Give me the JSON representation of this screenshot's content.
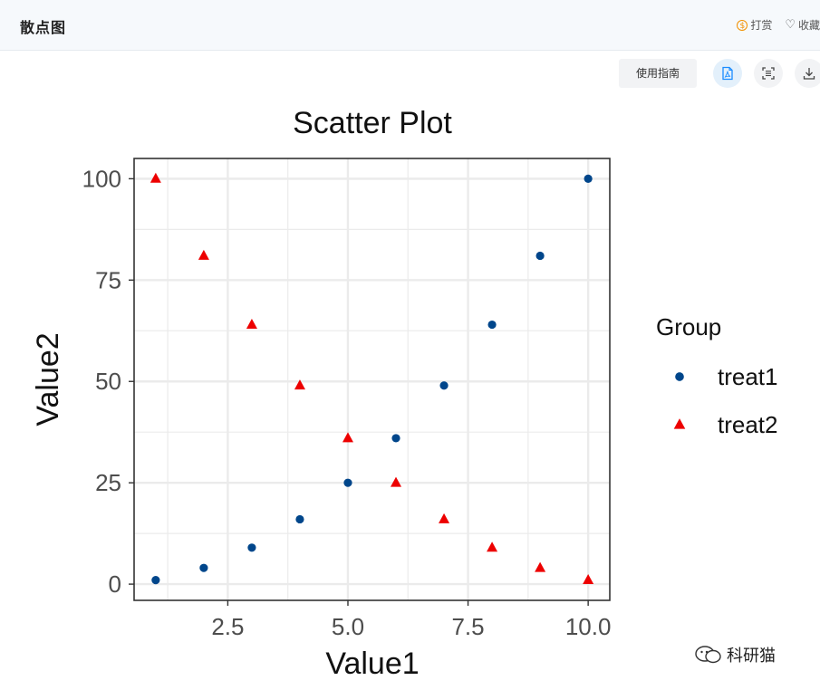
{
  "header": {
    "title": "散点图",
    "reward_label": "打赏",
    "favorite_label": "收藏"
  },
  "toolbar": {
    "guide_label": "使用指南"
  },
  "watermark": {
    "text": "科研猫"
  },
  "colors": {
    "treat1": "#00468b",
    "treat2": "#ed0000",
    "panel_border": "#333333",
    "grid": "#ebebeb"
  },
  "chart_data": {
    "type": "scatter",
    "title": "Scatter Plot",
    "xlabel": "Value1",
    "ylabel": "Value2",
    "xlim": [
      0.55,
      10.45
    ],
    "ylim": [
      -4,
      105
    ],
    "xticks": [
      2.5,
      5.0,
      7.5,
      10.0
    ],
    "xtick_labels": [
      "2.5",
      "5.0",
      "7.5",
      "10.0"
    ],
    "yticks": [
      0,
      25,
      50,
      75,
      100
    ],
    "ytick_labels": [
      "0",
      "25",
      "50",
      "75",
      "100"
    ],
    "grid": true,
    "legend": {
      "title": "Group",
      "position": "right"
    },
    "series": [
      {
        "name": "treat1",
        "marker": "circle",
        "color": "#00468b",
        "x": [
          1,
          2,
          3,
          4,
          5,
          6,
          7,
          8,
          9,
          10
        ],
        "y": [
          1,
          4,
          9,
          16,
          25,
          36,
          49,
          64,
          81,
          100
        ]
      },
      {
        "name": "treat2",
        "marker": "triangle",
        "color": "#ed0000",
        "x": [
          1,
          2,
          3,
          4,
          5,
          6,
          7,
          8,
          9,
          10
        ],
        "y": [
          100,
          81,
          64,
          49,
          36,
          25,
          16,
          9,
          4,
          1
        ]
      }
    ]
  }
}
